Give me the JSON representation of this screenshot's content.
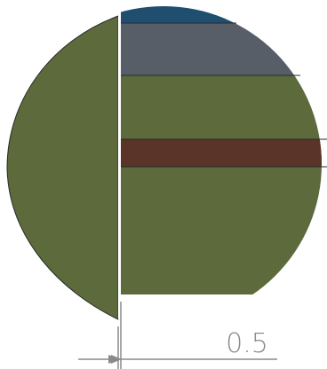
{
  "colors": {
    "background": "#ffffff",
    "left_region": "#5c6a3c",
    "right_base": "#5c6a3c",
    "top_cap": "#1f4e6e",
    "upper_band": "#575e68",
    "dark_band": "#5a3428",
    "gap_line": "#ffffff",
    "outline": "#2a2a2a",
    "dimension": "#8a8a8a"
  },
  "dimension": {
    "label": "0.5"
  }
}
